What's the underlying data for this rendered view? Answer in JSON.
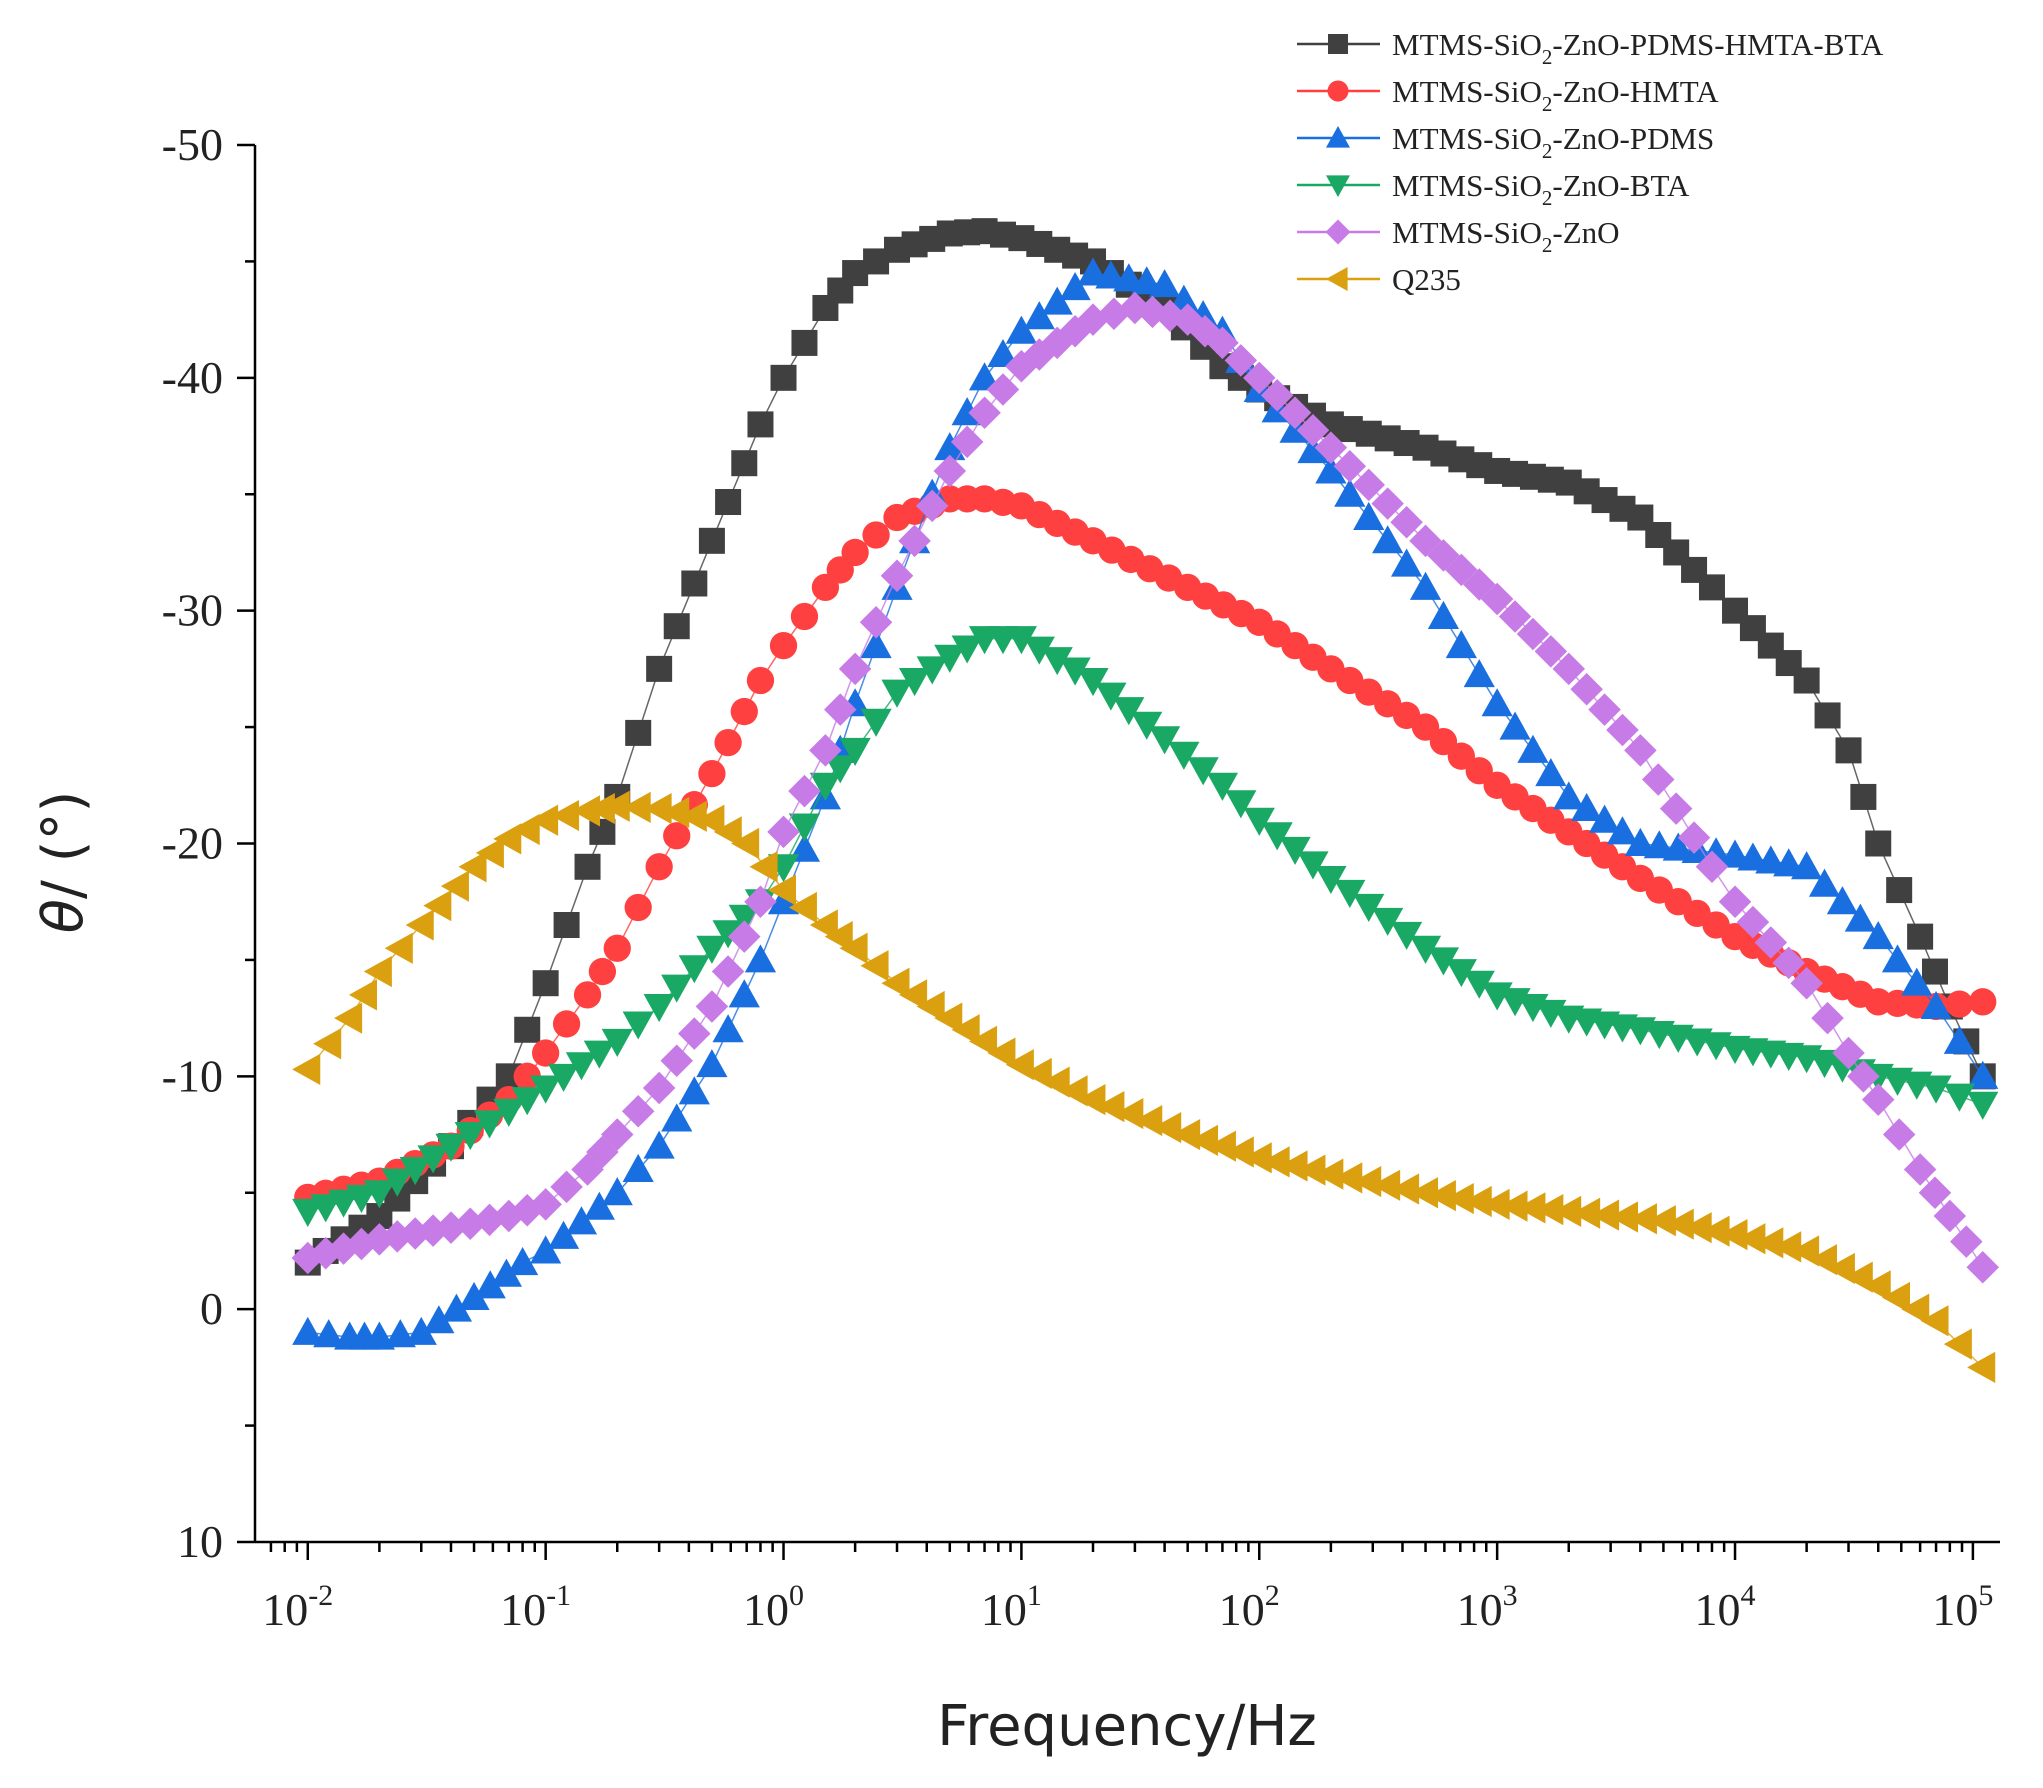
{
  "chart_data": {
    "type": "scatter",
    "xscale": "log",
    "xlim": [
      0.006,
      130000
    ],
    "ylim": [
      10,
      -50
    ],
    "xlabel": "Frequency/Hz",
    "ylabel_symbol": "θ",
    "ylabel_rest": "/ (°)",
    "y_ticks": [
      "-50",
      "-40",
      "-30",
      "-20",
      "-10",
      "0",
      "10"
    ],
    "x_ticks": [
      {
        "base": "10",
        "exp": "-2"
      },
      {
        "base": "10",
        "exp": "-1"
      },
      {
        "base": "10",
        "exp": "0"
      },
      {
        "base": "10",
        "exp": "1"
      },
      {
        "base": "10",
        "exp": "2"
      },
      {
        "base": "10",
        "exp": "3"
      },
      {
        "base": "10",
        "exp": "4"
      },
      {
        "base": "10",
        "exp": "5"
      }
    ],
    "legend_position": "top-right",
    "series": [
      {
        "name": "MTMS-SiO2-ZnO-PDMS-HMTA-BTA",
        "label_parts": [
          "MTMS-SiO",
          "2",
          "-ZnO-PDMS-HMTA-BTA"
        ],
        "color": "#404040",
        "marker": "square",
        "points": [
          [
            0.01,
            -2
          ],
          [
            0.02,
            -4
          ],
          [
            0.04,
            -7
          ],
          [
            0.07,
            -10
          ],
          [
            0.1,
            -14
          ],
          [
            0.15,
            -19
          ],
          [
            0.2,
            -22
          ],
          [
            0.3,
            -27.5
          ],
          [
            0.5,
            -33
          ],
          [
            0.8,
            -38
          ],
          [
            1,
            -40
          ],
          [
            1.5,
            -43
          ],
          [
            2,
            -44.5
          ],
          [
            3,
            -45.5
          ],
          [
            5,
            -46.2
          ],
          [
            7,
            -46.3
          ],
          [
            10,
            -46
          ],
          [
            20,
            -45
          ],
          [
            40,
            -43
          ],
          [
            70,
            -40.5
          ],
          [
            100,
            -39.5
          ],
          [
            200,
            -38
          ],
          [
            500,
            -37
          ],
          [
            1000,
            -36
          ],
          [
            2000,
            -35.5
          ],
          [
            4000,
            -34
          ],
          [
            8000,
            -31
          ],
          [
            10000,
            -30
          ],
          [
            20000,
            -27
          ],
          [
            30000,
            -24
          ],
          [
            40000,
            -20
          ],
          [
            60000,
            -16
          ],
          [
            80000,
            -13
          ],
          [
            110000,
            -10
          ]
        ]
      },
      {
        "name": "MTMS-SiO2-ZnO-HMTA",
        "label_parts": [
          "MTMS-SiO",
          "2",
          "-ZnO-HMTA"
        ],
        "color": "#ff4040",
        "marker": "circle",
        "points": [
          [
            0.01,
            -4.8
          ],
          [
            0.02,
            -5.5
          ],
          [
            0.04,
            -7
          ],
          [
            0.07,
            -9
          ],
          [
            0.1,
            -11
          ],
          [
            0.15,
            -13.5
          ],
          [
            0.2,
            -15.5
          ],
          [
            0.3,
            -19
          ],
          [
            0.5,
            -23
          ],
          [
            0.8,
            -27
          ],
          [
            1,
            -28.5
          ],
          [
            1.5,
            -31
          ],
          [
            2,
            -32.5
          ],
          [
            3,
            -34
          ],
          [
            5,
            -34.8
          ],
          [
            7,
            -34.8
          ],
          [
            10,
            -34.5
          ],
          [
            20,
            -33
          ],
          [
            50,
            -31
          ],
          [
            100,
            -29.5
          ],
          [
            200,
            -27.5
          ],
          [
            500,
            -25
          ],
          [
            1000,
            -22.5
          ],
          [
            2000,
            -20.5
          ],
          [
            4000,
            -18.5
          ],
          [
            10000,
            -16
          ],
          [
            20000,
            -14.5
          ],
          [
            40000,
            -13.2
          ],
          [
            70000,
            -13
          ],
          [
            110000,
            -13.2
          ]
        ]
      },
      {
        "name": "MTMS-SiO2-ZnO-PDMS",
        "label_parts": [
          "MTMS-SiO",
          "2",
          "-ZnO-PDMS"
        ],
        "color": "#1a6fe0",
        "marker": "triangle-up",
        "points": [
          [
            0.01,
            1
          ],
          [
            0.015,
            1.2
          ],
          [
            0.02,
            1.2
          ],
          [
            0.03,
            1
          ],
          [
            0.05,
            -0.5
          ],
          [
            0.08,
            -2
          ],
          [
            0.1,
            -2.5
          ],
          [
            0.2,
            -5
          ],
          [
            0.3,
            -7
          ],
          [
            0.5,
            -10.5
          ],
          [
            0.8,
            -15
          ],
          [
            1,
            -17.5
          ],
          [
            1.5,
            -22
          ],
          [
            2,
            -26
          ],
          [
            3,
            -31
          ],
          [
            5,
            -37
          ],
          [
            7,
            -40
          ],
          [
            10,
            -42
          ],
          [
            20,
            -44.5
          ],
          [
            40,
            -44
          ],
          [
            70,
            -42
          ],
          [
            100,
            -39.5
          ],
          [
            200,
            -36
          ],
          [
            500,
            -31
          ],
          [
            1000,
            -26
          ],
          [
            2000,
            -22
          ],
          [
            4000,
            -20
          ],
          [
            10000,
            -19.5
          ],
          [
            20000,
            -19
          ],
          [
            40000,
            -16
          ],
          [
            70000,
            -13
          ],
          [
            110000,
            -10
          ]
        ]
      },
      {
        "name": "MTMS-SiO2-ZnO-BTA",
        "label_parts": [
          "MTMS-SiO",
          "2",
          "-ZnO-BTA"
        ],
        "color": "#1aa865",
        "marker": "triangle-down",
        "points": [
          [
            0.01,
            -4.2
          ],
          [
            0.02,
            -5
          ],
          [
            0.04,
            -7
          ],
          [
            0.07,
            -8.5
          ],
          [
            0.1,
            -9.5
          ],
          [
            0.2,
            -11.5
          ],
          [
            0.3,
            -13
          ],
          [
            0.5,
            -15.5
          ],
          [
            0.8,
            -17.5
          ],
          [
            1,
            -19
          ],
          [
            1.5,
            -22.5
          ],
          [
            2,
            -24
          ],
          [
            3,
            -26.5
          ],
          [
            5,
            -28
          ],
          [
            7,
            -28.8
          ],
          [
            10,
            -28.8
          ],
          [
            20,
            -27
          ],
          [
            40,
            -24.5
          ],
          [
            70,
            -22.5
          ],
          [
            100,
            -21
          ],
          [
            200,
            -18.5
          ],
          [
            500,
            -15.5
          ],
          [
            1000,
            -13.5
          ],
          [
            2000,
            -12.5
          ],
          [
            4000,
            -12
          ],
          [
            10000,
            -11.2
          ],
          [
            20000,
            -10.8
          ],
          [
            40000,
            -10
          ],
          [
            70000,
            -9.5
          ],
          [
            110000,
            -8.8
          ]
        ]
      },
      {
        "name": "MTMS-SiO2-ZnO",
        "label_parts": [
          "MTMS-SiO",
          "2",
          "-ZnO"
        ],
        "color": "#c77be6",
        "marker": "diamond",
        "points": [
          [
            0.01,
            -2.2
          ],
          [
            0.02,
            -3
          ],
          [
            0.04,
            -3.5
          ],
          [
            0.07,
            -4
          ],
          [
            0.1,
            -4.5
          ],
          [
            0.15,
            -6
          ],
          [
            0.2,
            -7.5
          ],
          [
            0.3,
            -9.5
          ],
          [
            0.5,
            -13
          ],
          [
            0.8,
            -17.5
          ],
          [
            1,
            -20.5
          ],
          [
            1.5,
            -24
          ],
          [
            2,
            -27.5
          ],
          [
            3,
            -31.5
          ],
          [
            5,
            -36
          ],
          [
            7,
            -38.5
          ],
          [
            10,
            -40.5
          ],
          [
            20,
            -42.5
          ],
          [
            30,
            -43
          ],
          [
            50,
            -42.5
          ],
          [
            70,
            -41.5
          ],
          [
            100,
            -40
          ],
          [
            200,
            -37
          ],
          [
            500,
            -33
          ],
          [
            1000,
            -30.5
          ],
          [
            2000,
            -27.5
          ],
          [
            4000,
            -24
          ],
          [
            8000,
            -19
          ],
          [
            10000,
            -17.5
          ],
          [
            20000,
            -14
          ],
          [
            30000,
            -11
          ],
          [
            40000,
            -9
          ],
          [
            60000,
            -6
          ],
          [
            80000,
            -4
          ],
          [
            110000,
            -1.8
          ]
        ]
      },
      {
        "name": "Q235",
        "label_parts": [
          "Q235",
          "",
          ""
        ],
        "color": "#daa00f",
        "marker": "triangle-left",
        "points": [
          [
            0.01,
            -10.3
          ],
          [
            0.015,
            -12.5
          ],
          [
            0.02,
            -14.5
          ],
          [
            0.03,
            -16.5
          ],
          [
            0.05,
            -19
          ],
          [
            0.07,
            -20.2
          ],
          [
            0.1,
            -21
          ],
          [
            0.15,
            -21.4
          ],
          [
            0.2,
            -21.6
          ],
          [
            0.3,
            -21.5
          ],
          [
            0.5,
            -21
          ],
          [
            0.7,
            -20
          ],
          [
            1,
            -18
          ],
          [
            1.5,
            -16.5
          ],
          [
            2,
            -15.5
          ],
          [
            3,
            -14
          ],
          [
            5,
            -12.5
          ],
          [
            7,
            -11.5
          ],
          [
            10,
            -10.5
          ],
          [
            20,
            -9
          ],
          [
            50,
            -7.5
          ],
          [
            100,
            -6.5
          ],
          [
            200,
            -5.8
          ],
          [
            500,
            -5
          ],
          [
            1000,
            -4.5
          ],
          [
            2000,
            -4.2
          ],
          [
            5000,
            -3.8
          ],
          [
            10000,
            -3.2
          ],
          [
            20000,
            -2.5
          ],
          [
            40000,
            -1
          ],
          [
            70000,
            0.5
          ],
          [
            110000,
            2.5
          ]
        ]
      }
    ]
  }
}
